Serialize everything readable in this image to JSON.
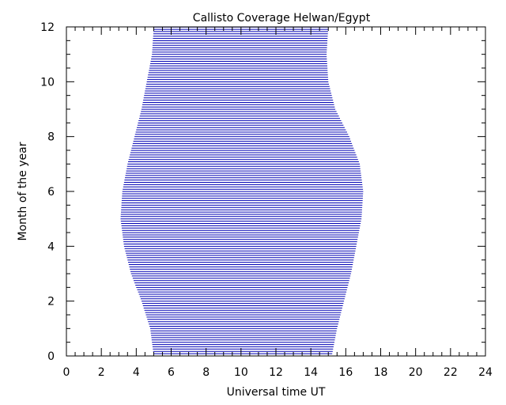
{
  "chart_data": {
    "type": "line",
    "title": "Callisto Coverage Helwan/Egypt",
    "xlabel": "Universal time UT",
    "ylabel": "Month of the year",
    "xlim": [
      0,
      24
    ],
    "ylim": [
      0,
      12
    ],
    "x_ticks": [
      "0",
      "2",
      "4",
      "6",
      "8",
      "10",
      "12",
      "14",
      "16",
      "18",
      "20",
      "22",
      "24"
    ],
    "y_ticks": [
      "0",
      "2",
      "4",
      "6",
      "8",
      "10",
      "12"
    ],
    "line_color": "#0000b4",
    "coverage": [
      {
        "month": 0,
        "start_ut": 5.0,
        "end_ut": 15.2
      },
      {
        "month": 1,
        "start_ut": 4.8,
        "end_ut": 15.5
      },
      {
        "month": 2,
        "start_ut": 4.3,
        "end_ut": 15.9
      },
      {
        "month": 3,
        "start_ut": 3.7,
        "end_ut": 16.3
      },
      {
        "month": 4,
        "start_ut": 3.3,
        "end_ut": 16.6
      },
      {
        "month": 5,
        "start_ut": 3.1,
        "end_ut": 16.9
      },
      {
        "month": 6,
        "start_ut": 3.2,
        "end_ut": 17.0
      },
      {
        "month": 7,
        "start_ut": 3.5,
        "end_ut": 16.8
      },
      {
        "month": 8,
        "start_ut": 3.9,
        "end_ut": 16.2
      },
      {
        "month": 9,
        "start_ut": 4.3,
        "end_ut": 15.4
      },
      {
        "month": 10,
        "start_ut": 4.6,
        "end_ut": 15.0
      },
      {
        "month": 11,
        "start_ut": 4.9,
        "end_ut": 14.9
      },
      {
        "month": 12,
        "start_ut": 5.0,
        "end_ut": 15.0
      }
    ]
  }
}
